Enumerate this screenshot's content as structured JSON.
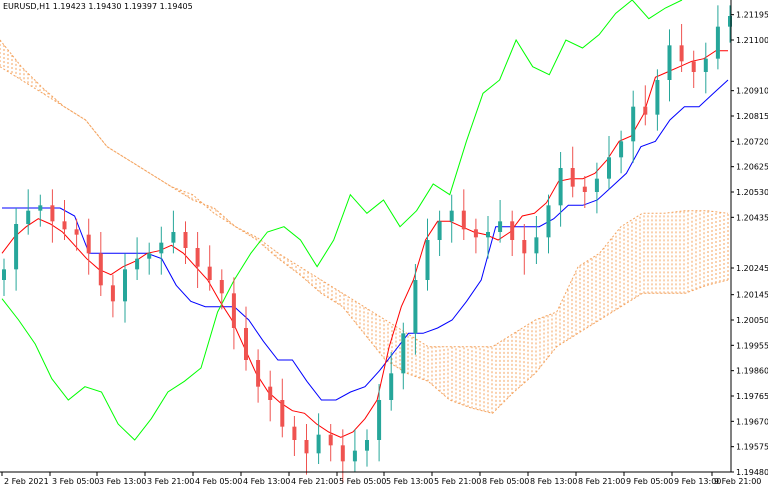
{
  "header": {
    "symbol_info": "EURUSD,H1  1.19423 1.19430 1.19397 1.19405"
  },
  "colors": {
    "bull": "#26a69a",
    "bear": "#ef5350",
    "tenkan": "#ff0000",
    "kijun": "#0000ff",
    "chikou": "#00ff00",
    "cloud": "#f4a460"
  },
  "chart_data": {
    "type": "candlestick",
    "y_ticks": [
      "1.21195",
      "1.21100",
      "1.20910",
      "1.20815",
      "1.20720",
      "1.20625",
      "1.20530",
      "1.20435",
      "1.20245",
      "1.20145",
      "1.20050",
      "1.19955",
      "1.19860",
      "1.19765",
      "1.19670",
      "1.19575",
      "1.19480"
    ],
    "x_ticks": [
      "2 Feb 2021",
      "3 Feb 05:00",
      "3 Feb 13:00",
      "3 Feb 21:00",
      "4 Feb 05:00",
      "4 Feb 13:00",
      "4 Feb 21:00",
      "5 Feb 05:00",
      "5 Feb 13:00",
      "5 Feb 21:00",
      "8 Feb 05:00",
      "8 Feb 13:00",
      "8 Feb 21:00",
      "9 Feb 05:00",
      "9 Feb 13:00",
      "9 Feb 21:00"
    ],
    "ylim": [
      1.1948,
      1.2125
    ],
    "price_series": [
      1.2024,
      1.2041,
      1.2046,
      1.2048,
      1.2042,
      1.2039,
      1.2037,
      1.203,
      1.2018,
      1.2012,
      1.2024,
      1.2028,
      1.203,
      1.2034,
      1.2038,
      1.2032,
      1.2025,
      1.202,
      1.2015,
      1.2002,
      1.199,
      1.198,
      1.1975,
      1.1965,
      1.196,
      1.1955,
      1.1962,
      1.1958,
      1.1952,
      1.1956,
      1.196,
      1.1975,
      1.1985,
      1.2,
      1.202,
      1.2035,
      1.2042,
      1.2046,
      1.2039,
      1.2036,
      1.2038,
      1.2042,
      1.2035,
      1.203,
      1.2036,
      1.2048,
      1.2062,
      1.2055,
      1.2053,
      1.2058,
      1.2066,
      1.2072,
      1.2085,
      1.2082,
      1.2095,
      1.2108,
      1.2102,
      1.2098,
      1.2103,
      1.2115,
      1.2119
    ],
    "tenkan": [
      1.203,
      1.2036,
      1.204,
      1.2043,
      1.2041,
      1.2038,
      1.2033,
      1.2028,
      1.2024,
      1.2022,
      1.2025,
      1.2027,
      1.203,
      1.2031,
      1.2033,
      1.203,
      1.2025,
      1.202,
      1.2012,
      1.2005,
      1.1995,
      1.1985,
      1.1978,
      1.1974,
      1.1971,
      1.197,
      1.1966,
      1.1963,
      1.1961,
      1.1963,
      1.1968,
      1.1975,
      1.1995,
      1.201,
      1.202,
      1.2035,
      1.2042,
      1.2042,
      1.204,
      1.2038,
      1.2037,
      1.2035,
      1.2038,
      1.2044,
      1.2045,
      1.2049,
      1.2057,
      1.2058,
      1.2058,
      1.206,
      1.2065,
      1.2072,
      1.2074,
      1.2082,
      1.2096,
      1.2098,
      1.21,
      1.2102,
      1.2103,
      1.2106,
      1.2106
    ],
    "kijun": [
      1.2047,
      1.2047,
      1.2047,
      1.2047,
      1.2047,
      1.2044,
      1.203,
      1.203,
      1.203,
      1.203,
      1.203,
      1.2028,
      1.2018,
      1.2012,
      1.201,
      1.201,
      1.201,
      1.2005,
      1.1997,
      1.199,
      1.199,
      1.1982,
      1.1975,
      1.1975,
      1.1978,
      1.198,
      1.1986,
      1.1993,
      1.2,
      1.2,
      1.2002,
      1.2005,
      1.2012,
      1.202,
      1.204,
      1.204,
      1.204,
      1.204,
      1.2043,
      1.2048,
      1.2048,
      1.205,
      1.2055,
      1.206,
      1.207,
      1.2072,
      1.208,
      1.2085,
      1.2085,
      1.209,
      1.2095
    ],
    "chikou": [
      1.2013,
      1.2005,
      1.1996,
      1.1983,
      1.1975,
      1.198,
      1.1978,
      1.1966,
      1.196,
      1.1968,
      1.1978,
      1.1982,
      1.1987,
      1.2008,
      1.202,
      1.203,
      1.2038,
      1.204,
      1.2035,
      1.2025,
      1.2035,
      1.2052,
      1.2045,
      1.205,
      1.204,
      1.2046,
      1.2056,
      1.2052,
      1.2072,
      1.209,
      1.2095,
      1.211,
      1.21,
      1.2097,
      1.211,
      1.2107,
      1.2112,
      1.212,
      1.2125,
      1.2118,
      1.2122,
      1.2125
    ],
    "span_a": [
      1.211,
      1.21,
      1.2092,
      1.2085,
      1.208,
      1.207,
      1.2065,
      1.206,
      1.2055,
      1.205,
      1.2047,
      1.204,
      1.2035,
      1.2028,
      1.2022,
      1.2015,
      1.201,
      1.2,
      1.199,
      1.1985,
      1.1982,
      1.1975,
      1.1972,
      1.197,
      1.1978,
      1.1985,
      1.1995,
      1.2,
      1.2005,
      1.201,
      1.2015,
      1.2015,
      1.2015,
      1.2018,
      1.202
    ],
    "span_b": [
      1.21,
      1.2095,
      1.209,
      1.2085,
      1.208,
      1.207,
      1.2065,
      1.206,
      1.2055,
      1.2052,
      1.2045,
      1.204,
      1.2036,
      1.203,
      1.2025,
      1.202,
      1.2015,
      1.201,
      1.2005,
      1.2,
      1.1995,
      1.1995,
      1.1995,
      1.1995,
      1.2,
      1.2005,
      1.2008,
      1.2025,
      1.203,
      1.204,
      1.2045,
      1.2045,
      1.2046,
      1.2046,
      1.2045
    ]
  }
}
